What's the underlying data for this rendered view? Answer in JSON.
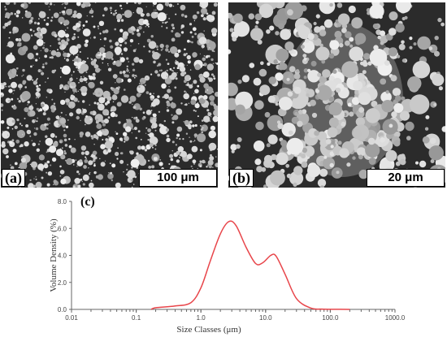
{
  "figure": {
    "panels": [
      {
        "label": "(a)",
        "scale": "100 μm"
      },
      {
        "label": "(b)",
        "scale": "20 μm"
      }
    ],
    "chart_label": "(c)"
  },
  "colors": {
    "curve": "#e8454a",
    "micrograph_bg": "#2b2b2b",
    "particles": "#b9b9b9"
  },
  "chart_data": {
    "type": "line",
    "title": "",
    "xlabel": "Size Classes (μm)",
    "ylabel": "Volume Density (%)",
    "xscale": "log",
    "xlim": [
      0.01,
      1000
    ],
    "ylim": [
      0,
      8
    ],
    "x_tick_labels": [
      "0.01",
      "0.1",
      "1.0",
      "10.0",
      "100.0",
      "1000.0"
    ],
    "y_tick_labels": [
      "0.0",
      "2.0",
      "4.0",
      "6.0",
      "8.0"
    ],
    "series": [
      {
        "points": [
          [
            0.17,
            0.0
          ],
          [
            0.2,
            0.12
          ],
          [
            0.4,
            0.25
          ],
          [
            0.7,
            0.5
          ],
          [
            1.0,
            1.6
          ],
          [
            1.4,
            3.6
          ],
          [
            2.0,
            5.6
          ],
          [
            2.7,
            6.5
          ],
          [
            3.5,
            6.2
          ],
          [
            5.0,
            4.6
          ],
          [
            7.0,
            3.4
          ],
          [
            9.0,
            3.45
          ],
          [
            12.0,
            4.0
          ],
          [
            14.5,
            3.95
          ],
          [
            20.0,
            2.6
          ],
          [
            30.0,
            0.8
          ],
          [
            50.0,
            0.1
          ],
          [
            80.0,
            0.02
          ],
          [
            200.0,
            0.0
          ]
        ]
      }
    ]
  }
}
